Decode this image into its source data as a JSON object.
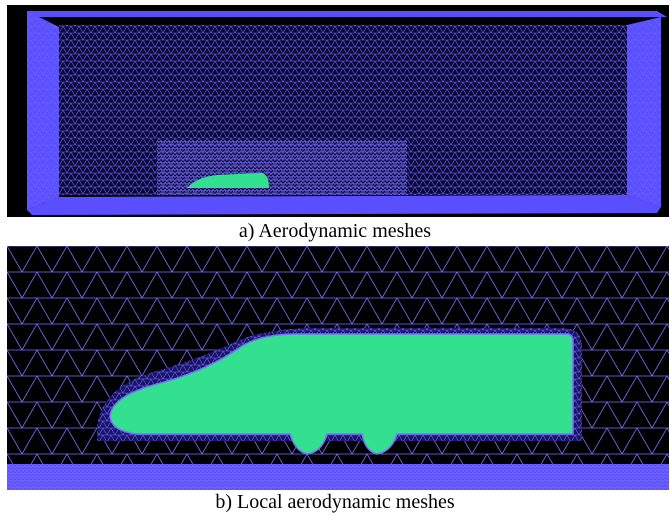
{
  "figure": {
    "panels": [
      {
        "caption": "a) Aerodynamic meshes"
      },
      {
        "caption": "b) Local aerodynamic meshes"
      }
    ]
  }
}
